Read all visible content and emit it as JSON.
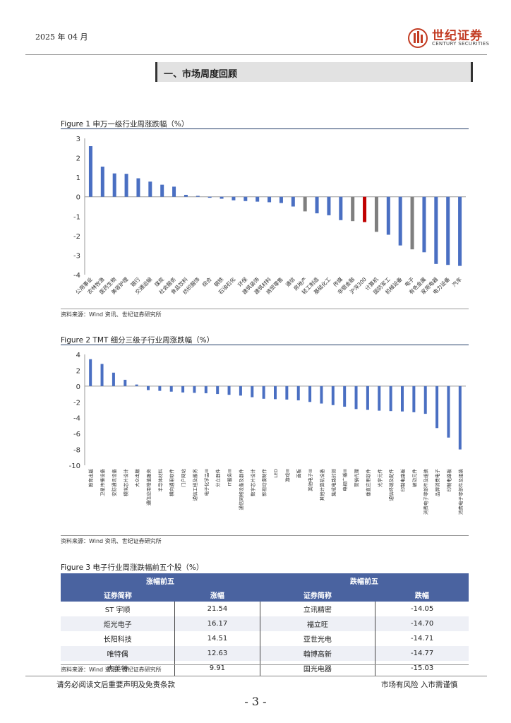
{
  "header": {
    "date": "2025 年 04 月",
    "logo_cn": "世纪证券",
    "logo_en": "CENTURY SECURITIES"
  },
  "section": {
    "title": "一、市场周度回顾"
  },
  "figure1": {
    "caption": "Figure 1  申万一级行业周涨跌幅（%）",
    "source": "资料来源：Wind 资讯、世纪证券研究所"
  },
  "figure2": {
    "caption": "Figure 2 TMT 细分三级子行业周涨跌幅（%）",
    "source": "资料来源：Wind 资讯、世纪证券研究所"
  },
  "figure3": {
    "caption": "Figure 3  电子行业周涨跌幅前五个股（%）",
    "source": "资料来源：Wind 资讯、世纪证券研究所",
    "group_up": "涨幅前五",
    "group_down": "跌幅前五",
    "col_name": "证券简称",
    "col_up": "涨幅",
    "col_down": "跌幅",
    "rows": [
      {
        "up_name": "ST 宇顺",
        "up_val": "21.54",
        "down_name": "立讯精密",
        "down_val": "-14.05"
      },
      {
        "up_name": "炬光电子",
        "up_val": "16.17",
        "down_name": "福立旺",
        "down_val": "-14.70"
      },
      {
        "up_name": "长阳科技",
        "up_val": "14.51",
        "down_name": "亚世光电",
        "down_val": "-14.71"
      },
      {
        "up_name": "唯特偶",
        "up_val": "12.63",
        "down_name": "翰博高新",
        "down_val": "-14.77"
      },
      {
        "up_name": "杰美特",
        "up_val": "9.91",
        "down_name": "国光电器",
        "down_val": "-15.03"
      }
    ]
  },
  "footer": {
    "left": "请务必阅读文后重要声明及免责条款",
    "right": "市场有风险  入市需谨慎",
    "page": "- 3 -"
  },
  "colors": {
    "bar": "#4a6fc2",
    "gray": "#7f7f7f",
    "red": "#c00000",
    "header_blue": "#4a63a0"
  },
  "chart_data": [
    {
      "type": "bar",
      "title": "申万一级行业周涨跌幅（%）",
      "ylim": [
        -4,
        3
      ],
      "yticks": [
        3,
        2,
        1,
        0,
        -1,
        -2,
        -3,
        -4
      ],
      "categories": [
        "公用事业",
        "农林牧渔",
        "医药生物",
        "美容护理",
        "银行",
        "交通运输",
        "煤炭",
        "社会服务",
        "食品饮料",
        "纺织服饰",
        "综合",
        "钢铁",
        "石油石化",
        "环保",
        "建筑装饰",
        "建筑材料",
        "商贸零售",
        "通信",
        "房地产",
        "轻工制造",
        "基础化工",
        "传媒",
        "非银金融",
        "沪深300",
        "计算机",
        "国防军工",
        "机械设备",
        "电子",
        "有色金属",
        "家用电器",
        "电力设备",
        "汽车"
      ],
      "values": [
        2.6,
        1.55,
        1.2,
        1.18,
        0.95,
        0.78,
        0.62,
        0.52,
        0.1,
        0.05,
        -0.05,
        -0.1,
        -0.18,
        -0.22,
        -0.25,
        -0.28,
        -0.32,
        -0.5,
        -0.75,
        -0.85,
        -0.95,
        -1.2,
        -1.25,
        -1.3,
        -1.8,
        -1.95,
        -2.5,
        -2.7,
        -2.85,
        -3.45,
        -3.5,
        -3.55
      ],
      "highlight": {
        "沪深300": "red",
        "房地产": "gray",
        "非银金融": "gray",
        "计算机": "gray",
        "电子": "gray"
      }
    },
    {
      "type": "bar",
      "title": "TMT 细分三级子行业周涨跌幅（%）",
      "ylim": [
        -10,
        4
      ],
      "yticks": [
        4,
        2,
        0,
        -2,
        -4,
        -6,
        -8,
        -10
      ],
      "categories": [
        "教育出版",
        "卫星传播设备",
        "安防通讯设备",
        "模拟芯片设计",
        "大众出版",
        "通信应用增值服务",
        "半导体材料",
        "横向通用软件",
        "门户网站",
        "通信工程及服务",
        "电子化学品III",
        "分立器件",
        "IT服务III",
        "通信网络设备及器件",
        "数字芯片设计",
        "影视动漫制作",
        "LED",
        "游戏III",
        "面板",
        "其他电子III",
        "其他计算机设备",
        "集成电路封测",
        "电视广播III",
        "营销代理",
        "垂直应用软件",
        "光学元件",
        "通信终端及配件",
        "印制电路板",
        "被动元件",
        "消费电子零部件及组装",
        "品牌消费电子",
        "印制电路板",
        "消费电子零部件及组装"
      ],
      "values": [
        3.4,
        2.8,
        1.7,
        0.8,
        0.2,
        -0.5,
        -0.6,
        -0.7,
        -0.8,
        -0.85,
        -0.9,
        -1.0,
        -1.1,
        -1.2,
        -1.4,
        -1.6,
        -1.65,
        -1.7,
        -1.8,
        -2.0,
        -2.2,
        -2.4,
        -2.6,
        -2.9,
        -3.0,
        -3.1,
        -3.15,
        -3.2,
        -3.3,
        -3.5,
        -5.3,
        -6.5,
        -8.0
      ]
    }
  ]
}
